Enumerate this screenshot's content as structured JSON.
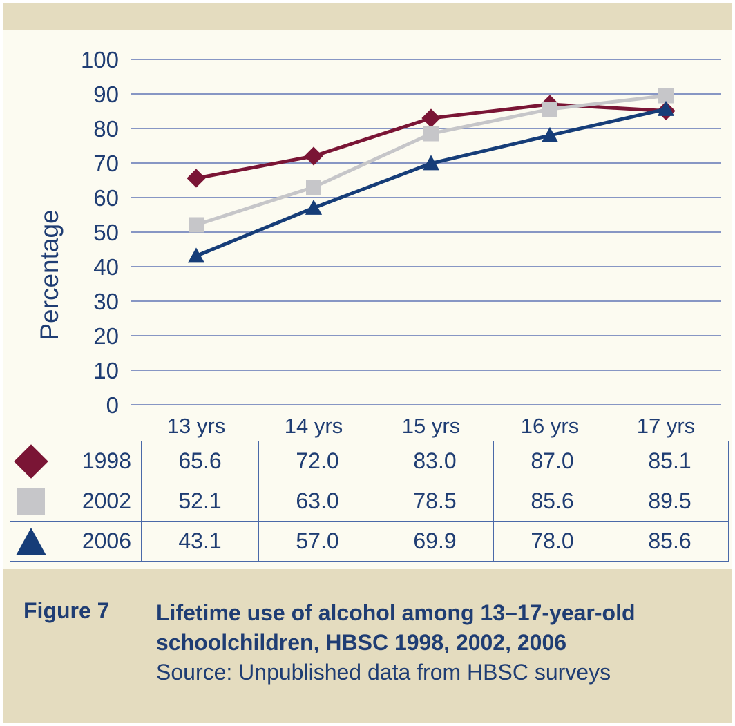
{
  "figure": {
    "label": "Figure 7",
    "title": "Lifetime use of alcohol among 13–17-year-old schoolchildren, HBSC 1998, 2002, 2006",
    "source": "Source: Unpublished data from HBSC surveys"
  },
  "colors": {
    "1998": "#7a1535",
    "2002": "#c6c6c9",
    "2006": "#163d78",
    "text": "#1f3d73",
    "grid": "#8796c4",
    "frame": "#e4dcbf",
    "panel": "#fcfbf1"
  },
  "chart_data": {
    "type": "line",
    "title": "",
    "xlabel": "",
    "ylabel": "Percentage",
    "ylim": [
      0,
      100
    ],
    "yticks": [
      0,
      10,
      20,
      30,
      40,
      50,
      60,
      70,
      80,
      90,
      100
    ],
    "grid": true,
    "categories": [
      "13 yrs",
      "14 yrs",
      "15 yrs",
      "16 yrs",
      "17 yrs"
    ],
    "series": [
      {
        "name": "1998",
        "marker": "diamond",
        "values": [
          65.6,
          72.0,
          83.0,
          87.0,
          85.1
        ],
        "labels": [
          "65.6",
          "72.0",
          "83.0",
          "87.0",
          "85.1"
        ]
      },
      {
        "name": "2002",
        "marker": "square",
        "values": [
          52.1,
          63.0,
          78.5,
          85.6,
          89.5
        ],
        "labels": [
          "52.1",
          "63.0",
          "78.5",
          "85.6",
          "89.5"
        ]
      },
      {
        "name": "2006",
        "marker": "triangle",
        "values": [
          43.1,
          57.0,
          69.9,
          78.0,
          85.6
        ],
        "labels": [
          "43.1",
          "57.0",
          "69.9",
          "78.0",
          "85.6"
        ]
      }
    ]
  }
}
